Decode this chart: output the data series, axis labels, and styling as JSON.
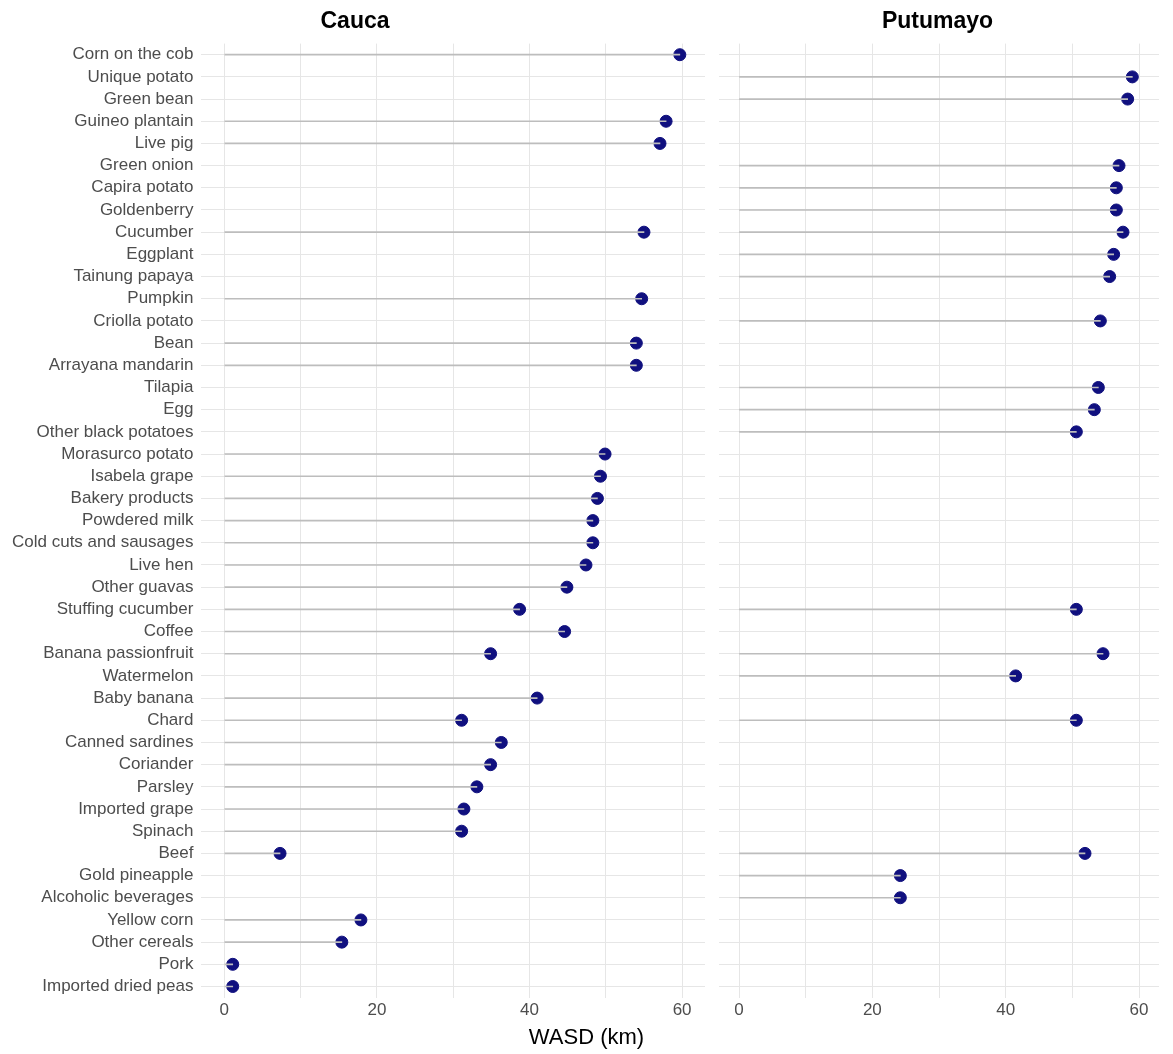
{
  "chart_data": [
    {
      "type": "lollipop",
      "orientation": "horizontal",
      "title": "Cauca",
      "xlabel": "WASD (km)",
      "color": "#10107f",
      "grid": true,
      "categories": [
        "Corn on the cob",
        "Unique potato",
        "Green bean",
        "Guineo plantain",
        "Live pig",
        "Green onion",
        "Capira potato",
        "Goldenberry",
        "Cucumber",
        "Eggplant",
        "Tainung papaya",
        "Pumpkin",
        "Criolla potato",
        "Bean",
        "Arrayana mandarin",
        "Tilapia",
        "Egg",
        "Other black potatoes",
        "Morasurco potato",
        "Isabela grape",
        "Bakery products",
        "Powdered milk",
        "Cold cuts and sausages",
        "Live hen",
        "Other guavas",
        "Stuffing cucumber",
        "Coffee",
        "Banana passionfruit",
        "Watermelon",
        "Baby banana",
        "Chard",
        "Canned sardines",
        "Coriander",
        "Parsley",
        "Imported grape",
        "Spinach",
        "Beef",
        "Gold pineapple",
        "Alcoholic beverages",
        "Yellow corn",
        "Other cereals",
        "Pork",
        "Imported dried peas"
      ],
      "values": [
        59.7,
        null,
        null,
        57.9,
        57.1,
        null,
        null,
        null,
        55.0,
        null,
        null,
        54.7,
        null,
        54.0,
        54.0,
        null,
        null,
        null,
        49.9,
        49.3,
        48.9,
        48.3,
        48.3,
        47.4,
        44.9,
        38.7,
        44.6,
        34.9,
        null,
        41.0,
        31.1,
        36.3,
        34.9,
        33.1,
        31.4,
        31.1,
        7.3,
        null,
        null,
        17.9,
        15.4,
        1.1,
        1.1
      ],
      "xlim": [
        -3,
        63
      ],
      "xticks": [
        0,
        {
          "value": 10,
          "label": null
        },
        20,
        {
          "value": 30,
          "label": null
        },
        40,
        {
          "value": 50,
          "label": null
        },
        60
      ]
    },
    {
      "type": "lollipop",
      "orientation": "horizontal",
      "title": "Putumayo",
      "color": "#10107f",
      "grid": true,
      "tick_labels": "x",
      "categories": [
        null,
        null,
        null,
        null,
        null,
        null,
        null,
        null,
        null,
        null,
        null,
        null,
        null,
        null,
        null,
        null,
        null,
        null,
        null,
        null,
        null,
        null,
        null,
        null,
        null,
        null,
        null,
        null,
        null,
        null,
        null,
        null,
        null,
        null,
        null,
        null,
        null,
        null,
        null,
        null,
        null,
        null,
        null
      ],
      "values": [
        null,
        59.0,
        58.3,
        null,
        null,
        57.0,
        56.6,
        56.6,
        57.6,
        56.2,
        55.6,
        null,
        54.2,
        null,
        null,
        53.9,
        53.3,
        50.6,
        null,
        null,
        null,
        null,
        null,
        null,
        null,
        50.6,
        null,
        54.6,
        41.5,
        null,
        50.6,
        null,
        null,
        null,
        null,
        null,
        51.9,
        24.2,
        24.2,
        null,
        null,
        null,
        null
      ],
      "xlim": [
        -3,
        63
      ],
      "xticks": [
        0,
        {
          "value": 10,
          "label": null
        },
        20,
        {
          "value": 30,
          "label": null
        },
        40,
        {
          "value": 50,
          "label": null
        },
        60
      ]
    }
  ]
}
